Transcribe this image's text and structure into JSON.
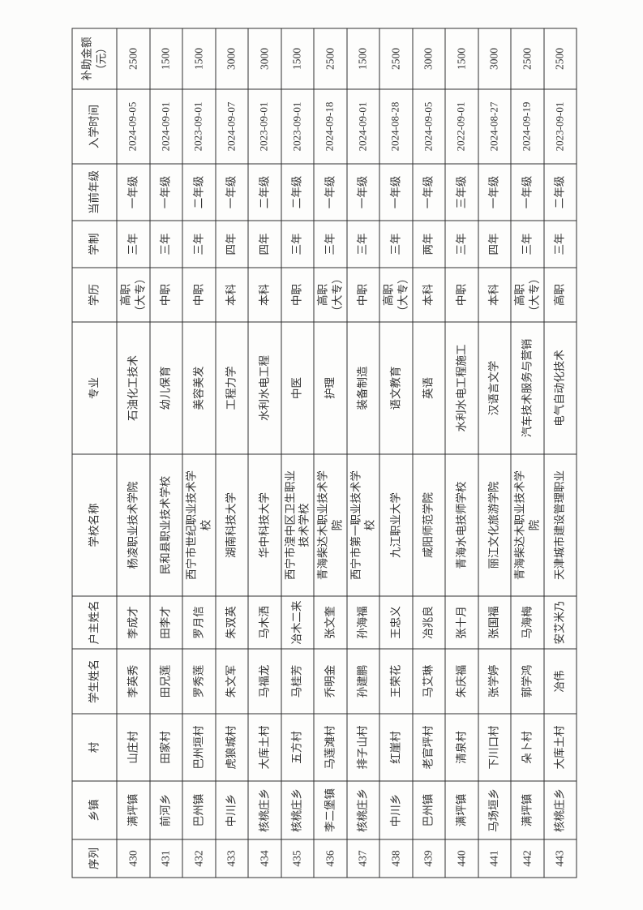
{
  "table": {
    "columns": [
      "序列",
      "乡镇",
      "村",
      "学生姓名",
      "户主姓名",
      "学校名称",
      "专业",
      "学历",
      "学制",
      "当前年级",
      "入学时间",
      "补助金额（元）"
    ],
    "rows": [
      [
        "430",
        "满坪镇",
        "山庄村",
        "李英秀",
        "李成才",
        "杨凌职业技术学院",
        "石油化工技术",
        "高职\n（大专）",
        "三年",
        "一年级",
        "2024-09-05",
        "2500"
      ],
      [
        "431",
        "前河乡",
        "田家村",
        "田兄莲",
        "田李才",
        "民和县职业技术学校",
        "幼儿保育",
        "中职",
        "三年",
        "一年级",
        "2024-09-01",
        "1500"
      ],
      [
        "432",
        "巴州镇",
        "巴州垣村",
        "罗秀莲",
        "罗月信",
        "西宁市世纪职业技术学校",
        "美容美发",
        "中职",
        "三年",
        "二年级",
        "2023-09-01",
        "1500"
      ],
      [
        "433",
        "中川乡",
        "虎狼城村",
        "朱文军",
        "朱双英",
        "湖南科技大学",
        "工程力学",
        "本科",
        "四年",
        "一年级",
        "2024-09-07",
        "3000"
      ],
      [
        "434",
        "核桃庄乡",
        "大库土村",
        "马福龙",
        "马木洒",
        "华中科技大学",
        "水利水电工程",
        "本科",
        "四年",
        "二年级",
        "2023-09-01",
        "3000"
      ],
      [
        "435",
        "核桃庄乡",
        "五方村",
        "马桂芳",
        "冶木二来",
        "西宁市湟中区卫生职业技术学校",
        "中医",
        "中职",
        "三年",
        "二年级",
        "2023-09-01",
        "1500"
      ],
      [
        "436",
        "李二堡镇",
        "马莲滩村",
        "乔明金",
        "张文奎",
        "青海柴达木职业技术学院",
        "护理",
        "高职\n（大专）",
        "三年",
        "一年级",
        "2024-09-18",
        "2500"
      ],
      [
        "437",
        "核桃庄乡",
        "排子山村",
        "孙建鹏",
        "孙海福",
        "西宁市第一职业技术学校",
        "装备制造",
        "中职",
        "三年",
        "一年级",
        "2024-09-01",
        "1500"
      ],
      [
        "438",
        "中川乡",
        "红崖村",
        "王荣花",
        "王忠义",
        "九江职业大学",
        "语文教育",
        "高职\n（大专）",
        "三年",
        "一年级",
        "2024-08-28",
        "2500"
      ],
      [
        "439",
        "巴州镇",
        "老官坪村",
        "马艾琳",
        "冶兆良",
        "咸阳师范学院",
        "英语",
        "本科",
        "两年",
        "一年级",
        "2024-09-05",
        "3000"
      ],
      [
        "440",
        "满坪镇",
        "清泉村",
        "朱庆福",
        "张十月",
        "青海水电技师学校",
        "水利水电工程施工",
        "中职",
        "三年",
        "三年级",
        "2022-09-01",
        "1500"
      ],
      [
        "441",
        "马场垣乡",
        "下川口村",
        "张学婷",
        "张国福",
        "丽江文化旅游学院",
        "汉语言文学",
        "本科",
        "四年",
        "一年级",
        "2024-08-27",
        "3000"
      ],
      [
        "442",
        "满坪镇",
        "朵卜村",
        "郭学鸿",
        "马海梅",
        "青海柴达木职业技术学院",
        "汽车技术服务与营销",
        "高职\n（大专）",
        "三年",
        "一年级",
        "2024-09-19",
        "2500"
      ],
      [
        "443",
        "核桃庄乡",
        "大库土村",
        "冶伟",
        "安艾米乃",
        "天津城市建设管理职业",
        "电气自动化技术",
        "高职",
        "三年",
        "二年级",
        "2023-09-01",
        "2500"
      ]
    ]
  }
}
